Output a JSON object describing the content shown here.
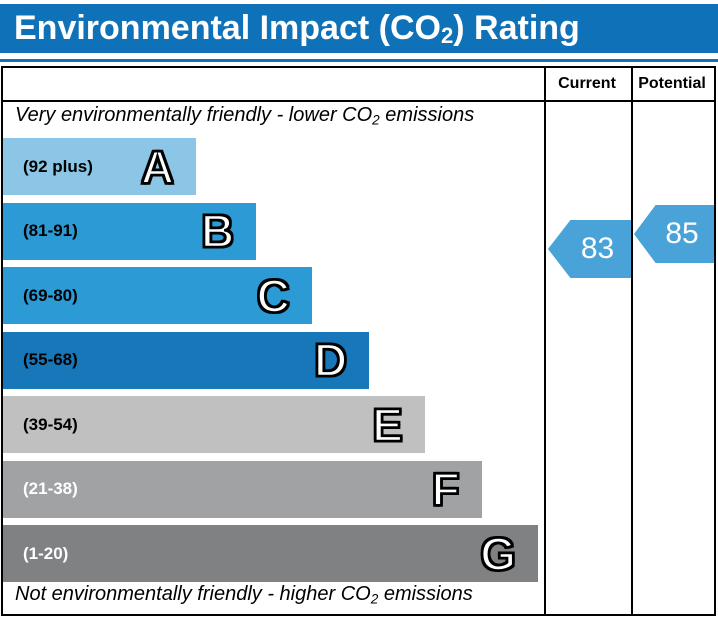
{
  "title": {
    "pre": "Environmental Impact (CO",
    "sub": "2",
    "post": ") Rating"
  },
  "colors": {
    "title_bg": "#0f72b9",
    "border": "#000000",
    "arrow": "#4aa3d8"
  },
  "table": {
    "columns": [
      {
        "label": "Current"
      },
      {
        "label": "Potential"
      }
    ],
    "top_note": {
      "pre": "Very environmentally friendly - lower CO",
      "sub": "2",
      "post": " emissions"
    },
    "bottom_note": {
      "pre": "Not environmentally friendly - higher CO",
      "sub": "2",
      "post": " emissions"
    }
  },
  "bands": [
    {
      "letter": "A",
      "range": "(92 plus)",
      "color": "#8cc6e6",
      "width": "35.7%",
      "text_color": "#000000"
    },
    {
      "letter": "B",
      "range": "(81-91)",
      "color": "#2b9ad5",
      "width": "46.8%",
      "text_color": "#000000"
    },
    {
      "letter": "C",
      "range": "(69-80)",
      "color": "#2b9ad5",
      "width": "57.1%",
      "text_color": "#000000"
    },
    {
      "letter": "D",
      "range": "(55-68)",
      "color": "#1777b9",
      "width": "67.7%",
      "text_color": "#000000"
    },
    {
      "letter": "E",
      "range": "(39-54)",
      "color": "#c0c0c0",
      "width": "78.0%",
      "text_color": "#000000"
    },
    {
      "letter": "F",
      "range": "(21-38)",
      "color": "#a0a2a4",
      "width": "88.5%",
      "text_color": "#ffffff"
    },
    {
      "letter": "G",
      "range": "(1-20)",
      "color": "#7f8183",
      "width": "98.9%",
      "text_color": "#ffffff"
    }
  ],
  "ratings": {
    "current": {
      "value": "83",
      "color": "#4aa3d8"
    },
    "potential": {
      "value": "85",
      "color": "#4aa3d8"
    }
  },
  "chart_data": {
    "type": "bar",
    "title": "Environmental Impact (CO2) Rating",
    "categories": [
      "A",
      "B",
      "C",
      "D",
      "E",
      "F",
      "G"
    ],
    "band_ranges": [
      "92 plus",
      "81-91",
      "69-80",
      "55-68",
      "39-54",
      "21-38",
      "1-20"
    ],
    "band_bounds": [
      {
        "min": 92,
        "max": 100
      },
      {
        "min": 81,
        "max": 91
      },
      {
        "min": 69,
        "max": 80
      },
      {
        "min": 55,
        "max": 68
      },
      {
        "min": 39,
        "max": 54
      },
      {
        "min": 21,
        "max": 38
      },
      {
        "min": 1,
        "max": 20
      }
    ],
    "series": [
      {
        "name": "Current",
        "values": [
          83
        ],
        "band": "B"
      },
      {
        "name": "Potential",
        "values": [
          85
        ],
        "band": "B"
      }
    ],
    "scale_range": [
      1,
      100
    ],
    "legend_position": "top-right-columns",
    "grid": false,
    "top_annotation": "Very environmentally friendly - lower CO2 emissions",
    "bottom_annotation": "Not environmentally friendly - higher CO2 emissions"
  }
}
